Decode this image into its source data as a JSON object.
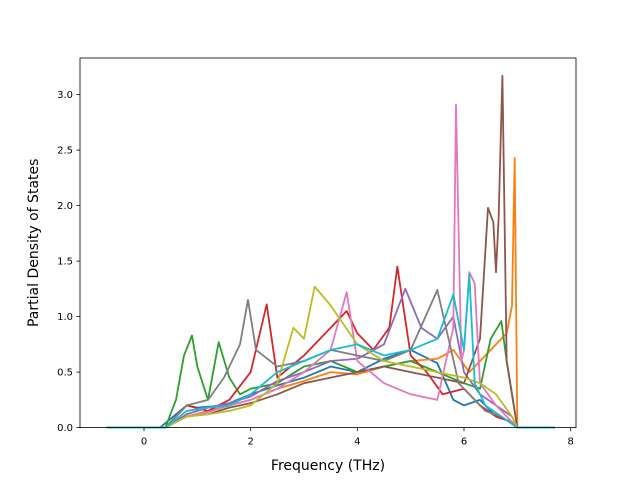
{
  "chart_data": {
    "type": "line",
    "title": "",
    "xlabel": "Frequency (THz)",
    "ylabel": "Partial Density of States",
    "xlim": [
      -1.2,
      8.1
    ],
    "ylim": [
      0.0,
      3.33
    ],
    "xticks": [
      0,
      2,
      4,
      6,
      8
    ],
    "yticks": [
      0.0,
      0.5,
      1.0,
      1.5,
      2.0,
      2.5,
      3.0
    ],
    "xtick_labels": [
      "0",
      "2",
      "4",
      "6",
      "8"
    ],
    "ytick_labels": [
      "0.0",
      "0.5",
      "1.0",
      "1.5",
      "2.0",
      "2.5",
      "3.0"
    ],
    "grid": false,
    "legend": "none",
    "series": [
      {
        "color": "#1f77b4",
        "x": [
          -0.7,
          0.3,
          0.6,
          0.8,
          1.0,
          1.5,
          2.0,
          2.5,
          3.0,
          3.5,
          4.0,
          4.5,
          5.0,
          5.5,
          5.8,
          6.0,
          6.3,
          6.6,
          6.9,
          7.0,
          7.7
        ],
        "y": [
          0,
          0,
          0.12,
          0.2,
          0.18,
          0.2,
          0.3,
          0.38,
          0.45,
          0.55,
          0.5,
          0.62,
          0.7,
          0.58,
          0.25,
          0.2,
          0.25,
          0.1,
          0.05,
          0,
          0
        ]
      },
      {
        "color": "#ff7f0e",
        "x": [
          -0.7,
          0.4,
          0.8,
          1.2,
          1.6,
          2.0,
          2.5,
          3.0,
          3.5,
          4.0,
          4.5,
          5.0,
          5.5,
          5.8,
          6.1,
          6.4,
          6.6,
          6.8,
          6.9,
          6.95,
          7.0,
          7.7
        ],
        "y": [
          0,
          0,
          0.1,
          0.15,
          0.2,
          0.25,
          0.35,
          0.42,
          0.5,
          0.48,
          0.55,
          0.6,
          0.62,
          0.7,
          0.5,
          0.65,
          0.75,
          0.85,
          1.1,
          2.43,
          0,
          0
        ]
      },
      {
        "color": "#2ca02c",
        "x": [
          -0.7,
          0.4,
          0.6,
          0.75,
          0.9,
          1.0,
          1.2,
          1.4,
          1.6,
          1.8,
          2.0,
          2.5,
          3.0,
          3.5,
          4.0,
          4.5,
          5.0,
          5.5,
          6.0,
          6.3,
          6.5,
          6.7,
          6.8,
          6.9,
          7.0,
          7.7
        ],
        "y": [
          0,
          0,
          0.25,
          0.65,
          0.83,
          0.55,
          0.25,
          0.77,
          0.45,
          0.3,
          0.35,
          0.4,
          0.55,
          0.6,
          0.5,
          0.55,
          0.6,
          0.5,
          0.4,
          0.35,
          0.8,
          0.96,
          0.6,
          0.3,
          0,
          0
        ]
      },
      {
        "color": "#d62728",
        "x": [
          -0.7,
          0.4,
          0.8,
          1.2,
          1.6,
          2.0,
          2.3,
          2.5,
          3.0,
          3.5,
          3.8,
          4.0,
          4.3,
          4.6,
          4.75,
          5.0,
          5.3,
          5.6,
          6.0,
          6.3,
          6.6,
          6.9,
          7.0,
          7.7
        ],
        "y": [
          0,
          0,
          0.2,
          0.15,
          0.25,
          0.5,
          1.11,
          0.45,
          0.65,
          0.9,
          1.05,
          0.85,
          0.7,
          0.9,
          1.45,
          0.65,
          0.5,
          0.3,
          0.35,
          0.2,
          0.1,
          0.05,
          0,
          0
        ]
      },
      {
        "color": "#9467bd",
        "x": [
          -0.7,
          0.4,
          0.8,
          1.2,
          1.6,
          2.0,
          2.5,
          3.0,
          3.5,
          4.0,
          4.5,
          4.9,
          5.2,
          5.5,
          5.8,
          6.0,
          6.3,
          6.6,
          6.9,
          7.0,
          7.7
        ],
        "y": [
          0,
          0,
          0.12,
          0.18,
          0.22,
          0.28,
          0.42,
          0.5,
          0.6,
          0.62,
          0.75,
          1.25,
          0.9,
          0.8,
          1.0,
          0.5,
          0.3,
          0.2,
          0.1,
          0,
          0
        ]
      },
      {
        "color": "#8c564b",
        "x": [
          -0.7,
          0.4,
          0.8,
          1.2,
          1.6,
          2.0,
          2.5,
          3.0,
          3.5,
          4.0,
          4.5,
          5.0,
          5.5,
          6.0,
          6.3,
          6.45,
          6.55,
          6.6,
          6.65,
          6.72,
          6.8,
          6.9,
          7.0,
          7.7
        ],
        "y": [
          0,
          0,
          0.1,
          0.12,
          0.18,
          0.22,
          0.3,
          0.4,
          0.45,
          0.5,
          0.55,
          0.5,
          0.45,
          0.4,
          0.8,
          1.98,
          1.85,
          1.4,
          1.9,
          3.17,
          0.6,
          0.3,
          0,
          0
        ]
      },
      {
        "color": "#e377c2",
        "x": [
          -0.7,
          0.4,
          0.8,
          1.2,
          1.6,
          2.0,
          2.5,
          3.0,
          3.5,
          3.8,
          4.0,
          4.5,
          5.0,
          5.5,
          5.8,
          5.85,
          5.95,
          6.0,
          6.1,
          6.2,
          6.3,
          6.6,
          7.0,
          7.7
        ],
        "y": [
          0,
          0,
          0.1,
          0.14,
          0.2,
          0.25,
          0.35,
          0.5,
          0.7,
          1.22,
          0.6,
          0.4,
          0.3,
          0.25,
          0.9,
          2.91,
          0.6,
          0.7,
          1.4,
          1.3,
          0.4,
          0.2,
          0,
          0
        ]
      },
      {
        "color": "#7f7f7f",
        "x": [
          -0.7,
          0.4,
          0.8,
          1.2,
          1.5,
          1.8,
          1.95,
          2.1,
          2.5,
          3.0,
          3.5,
          4.0,
          4.5,
          5.0,
          5.5,
          5.9,
          6.1,
          6.4,
          6.7,
          7.0,
          7.7
        ],
        "y": [
          0,
          0,
          0.2,
          0.25,
          0.45,
          0.75,
          1.15,
          0.7,
          0.55,
          0.6,
          0.7,
          0.65,
          0.6,
          0.7,
          1.24,
          0.4,
          0.3,
          0.15,
          0.1,
          0,
          0
        ]
      },
      {
        "color": "#bcbd22",
        "x": [
          -0.7,
          0.4,
          0.8,
          1.2,
          1.6,
          2.0,
          2.5,
          2.8,
          3.0,
          3.2,
          3.5,
          4.0,
          4.5,
          5.0,
          5.5,
          6.0,
          6.3,
          6.6,
          6.9,
          7.0,
          7.7
        ],
        "y": [
          0,
          0,
          0.1,
          0.12,
          0.15,
          0.2,
          0.4,
          0.9,
          0.8,
          1.27,
          1.1,
          0.75,
          0.6,
          0.55,
          0.5,
          0.45,
          0.4,
          0.3,
          0.1,
          0,
          0
        ]
      },
      {
        "color": "#17becf",
        "x": [
          -0.7,
          0.4,
          0.8,
          1.2,
          1.6,
          2.0,
          2.5,
          3.0,
          3.5,
          4.0,
          4.5,
          5.0,
          5.5,
          5.8,
          6.0,
          6.1,
          6.2,
          6.4,
          6.7,
          7.0,
          7.7
        ],
        "y": [
          0,
          0,
          0.15,
          0.18,
          0.2,
          0.3,
          0.5,
          0.6,
          0.7,
          0.75,
          0.65,
          0.7,
          0.8,
          1.2,
          0.7,
          1.38,
          0.4,
          0.2,
          0.1,
          0,
          0
        ]
      }
    ]
  }
}
